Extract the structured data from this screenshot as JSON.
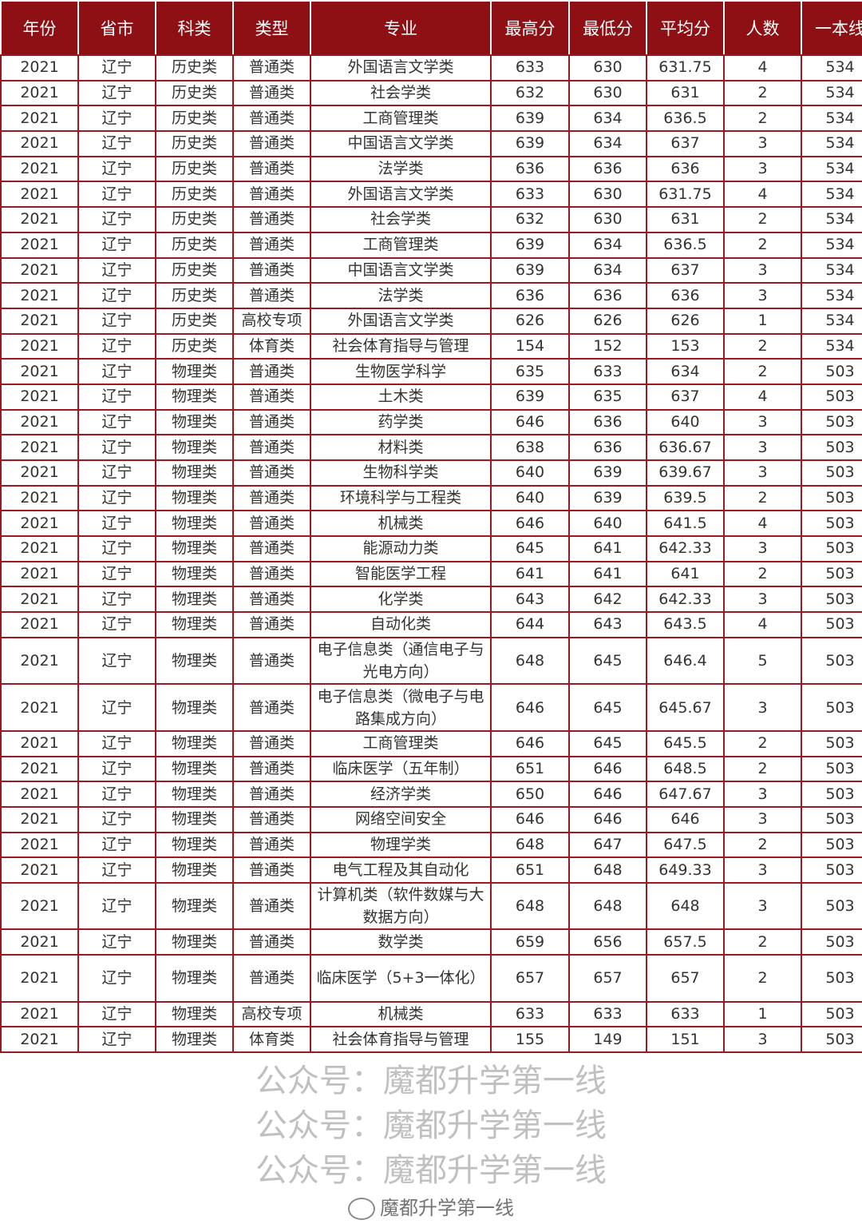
{
  "headers": [
    "年份",
    "省市",
    "科类",
    "类型",
    "专业",
    "最高分",
    "最低分",
    "平均分",
    "人数",
    "一本线"
  ],
  "rows": [
    [
      "2021",
      "辽宁",
      "历史类",
      "普通类",
      "外国语言文学类",
      "633",
      "630",
      "631.75",
      "4",
      "534"
    ],
    [
      "2021",
      "辽宁",
      "历史类",
      "普通类",
      "社会学类",
      "632",
      "630",
      "631",
      "2",
      "534"
    ],
    [
      "2021",
      "辽宁",
      "历史类",
      "普通类",
      "工商管理类",
      "639",
      "634",
      "636.5",
      "2",
      "534"
    ],
    [
      "2021",
      "辽宁",
      "历史类",
      "普通类",
      "中国语言文学类",
      "639",
      "634",
      "637",
      "3",
      "534"
    ],
    [
      "2021",
      "辽宁",
      "历史类",
      "普通类",
      "法学类",
      "636",
      "636",
      "636",
      "3",
      "534"
    ],
    [
      "2021",
      "辽宁",
      "历史类",
      "普通类",
      "外国语言文学类",
      "633",
      "630",
      "631.75",
      "4",
      "534"
    ],
    [
      "2021",
      "辽宁",
      "历史类",
      "普通类",
      "社会学类",
      "632",
      "630",
      "631",
      "2",
      "534"
    ],
    [
      "2021",
      "辽宁",
      "历史类",
      "普通类",
      "工商管理类",
      "639",
      "634",
      "636.5",
      "2",
      "534"
    ],
    [
      "2021",
      "辽宁",
      "历史类",
      "普通类",
      "中国语言文学类",
      "639",
      "634",
      "637",
      "3",
      "534"
    ],
    [
      "2021",
      "辽宁",
      "历史类",
      "普通类",
      "法学类",
      "636",
      "636",
      "636",
      "3",
      "534"
    ],
    [
      "2021",
      "辽宁",
      "历史类",
      "高校专项",
      "外国语言文学类",
      "626",
      "626",
      "626",
      "1",
      "534"
    ],
    [
      "2021",
      "辽宁",
      "历史类",
      "体育类",
      "社会体育指导与管理",
      "154",
      "152",
      "153",
      "2",
      "534"
    ],
    [
      "2021",
      "辽宁",
      "物理类",
      "普通类",
      "生物医学科学",
      "635",
      "633",
      "634",
      "2",
      "503"
    ],
    [
      "2021",
      "辽宁",
      "物理类",
      "普通类",
      "土木类",
      "639",
      "635",
      "637",
      "4",
      "503"
    ],
    [
      "2021",
      "辽宁",
      "物理类",
      "普通类",
      "药学类",
      "646",
      "636",
      "640",
      "3",
      "503"
    ],
    [
      "2021",
      "辽宁",
      "物理类",
      "普通类",
      "材料类",
      "638",
      "636",
      "636.67",
      "3",
      "503"
    ],
    [
      "2021",
      "辽宁",
      "物理类",
      "普通类",
      "生物科学类",
      "640",
      "639",
      "639.67",
      "3",
      "503"
    ],
    [
      "2021",
      "辽宁",
      "物理类",
      "普通类",
      "环境科学与工程类",
      "640",
      "639",
      "639.5",
      "2",
      "503"
    ],
    [
      "2021",
      "辽宁",
      "物理类",
      "普通类",
      "机械类",
      "646",
      "640",
      "641.5",
      "4",
      "503"
    ],
    [
      "2021",
      "辽宁",
      "物理类",
      "普通类",
      "能源动力类",
      "645",
      "641",
      "642.33",
      "3",
      "503"
    ],
    [
      "2021",
      "辽宁",
      "物理类",
      "普通类",
      "智能医学工程",
      "641",
      "641",
      "641",
      "2",
      "503"
    ],
    [
      "2021",
      "辽宁",
      "物理类",
      "普通类",
      "化学类",
      "643",
      "642",
      "642.33",
      "3",
      "503"
    ],
    [
      "2021",
      "辽宁",
      "物理类",
      "普通类",
      "自动化类",
      "644",
      "643",
      "643.5",
      "4",
      "503"
    ],
    [
      "2021",
      "辽宁",
      "物理类",
      "普通类",
      "电子信息类（通信电子与光电方向）",
      "648",
      "645",
      "646.4",
      "5",
      "503"
    ],
    [
      "2021",
      "辽宁",
      "物理类",
      "普通类",
      "电子信息类（微电子与电路集成方向）",
      "646",
      "645",
      "645.67",
      "3",
      "503"
    ],
    [
      "2021",
      "辽宁",
      "物理类",
      "普通类",
      "工商管理类",
      "646",
      "645",
      "645.5",
      "2",
      "503"
    ],
    [
      "2021",
      "辽宁",
      "物理类",
      "普通类",
      "临床医学（五年制）",
      "651",
      "646",
      "648.5",
      "2",
      "503"
    ],
    [
      "2021",
      "辽宁",
      "物理类",
      "普通类",
      "经济学类",
      "650",
      "646",
      "647.67",
      "3",
      "503"
    ],
    [
      "2021",
      "辽宁",
      "物理类",
      "普通类",
      "网络空间安全",
      "646",
      "646",
      "646",
      "3",
      "503"
    ],
    [
      "2021",
      "辽宁",
      "物理类",
      "普通类",
      "物理学类",
      "648",
      "647",
      "647.5",
      "2",
      "503"
    ],
    [
      "2021",
      "辽宁",
      "物理类",
      "普通类",
      "电气工程及其自动化",
      "651",
      "648",
      "649.33",
      "3",
      "503"
    ],
    [
      "2021",
      "辽宁",
      "物理类",
      "普通类",
      "计算机类（软件数媒与大数据方向）",
      "648",
      "648",
      "648",
      "3",
      "503"
    ],
    [
      "2021",
      "辽宁",
      "物理类",
      "普通类",
      "数学类",
      "659",
      "656",
      "657.5",
      "2",
      "503"
    ],
    [
      "2021",
      "辽宁",
      "物理类",
      "普通类",
      "临床医学（5+3一体化）",
      "657",
      "657",
      "657",
      "2",
      "503"
    ],
    [
      "2021",
      "辽宁",
      "物理类",
      "高校专项",
      "机械类",
      "633",
      "633",
      "633",
      "1",
      "503"
    ],
    [
      "2021",
      "辽宁",
      "物理类",
      "体育类",
      "社会体育指导与管理",
      "155",
      "149",
      "151",
      "3",
      "503"
    ]
  ],
  "double_rows": [
    23,
    24,
    31,
    33
  ],
  "watermark": "公众号：魔都升学第一线",
  "brand": "魔都升学第一线",
  "colors": {
    "header_bg": "#8e0f14",
    "border": "#9a1a1f"
  }
}
